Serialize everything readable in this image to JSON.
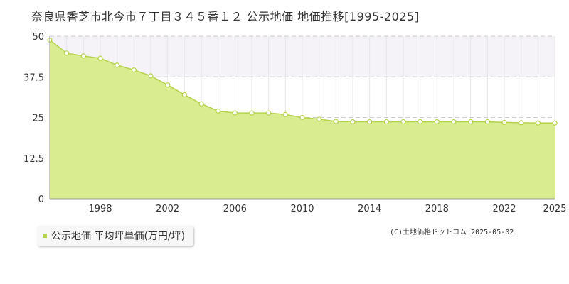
{
  "title": "奈良県香芝市北今市７丁目３４５番１２ 公示地価 地価推移[1995-2025]",
  "legend_label": "公示地価 平均坪単価(万円/坪)",
  "copyright": "(C)土地価格ドットコム 2025-05-02",
  "colors": {
    "area_fill": "#d9ec8f",
    "line": "#b5d24d",
    "marker_fill": "#ffffff",
    "plot_band": "#f5f3f7",
    "grid": "#cccccc",
    "legend_swatch": "#b5d24d"
  },
  "chart_data": {
    "type": "area",
    "title": "奈良県香芝市北今市７丁目３４５番１２ 公示地価 地価推移[1995-2025]",
    "series": [
      {
        "name": "公示地価 平均坪単価(万円/坪)",
        "x": [
          1995,
          1996,
          1997,
          1998,
          1999,
          2000,
          2001,
          2002,
          2003,
          2004,
          2005,
          2006,
          2007,
          2008,
          2009,
          2010,
          2011,
          2012,
          2013,
          2014,
          2015,
          2016,
          2017,
          2018,
          2019,
          2020,
          2021,
          2022,
          2023,
          2024,
          2025
        ],
        "values": [
          48.8,
          44.8,
          43.9,
          43.2,
          41.1,
          39.6,
          37.8,
          35.0,
          32.0,
          29.2,
          27.0,
          26.4,
          26.4,
          26.4,
          25.9,
          25.0,
          24.5,
          23.8,
          23.7,
          23.7,
          23.7,
          23.7,
          23.7,
          23.7,
          23.7,
          23.7,
          23.7,
          23.5,
          23.4,
          23.3,
          23.3
        ]
      }
    ],
    "x_ticks": [
      "1998",
      "2002",
      "2006",
      "2010",
      "2014",
      "2018",
      "2022",
      "2025"
    ],
    "x_tick_values": [
      1998,
      2002,
      2006,
      2010,
      2014,
      2018,
      2022,
      2025
    ],
    "y_ticks": [
      "0",
      "12.5",
      "25",
      "37.5",
      "50"
    ],
    "y_tick_values": [
      0,
      12.5,
      25,
      37.5,
      50
    ],
    "xlim": [
      1995,
      2025
    ],
    "ylim": [
      0,
      50
    ],
    "xlabel": "",
    "ylabel": "",
    "grid": true,
    "legend_position": "bottom-left"
  }
}
